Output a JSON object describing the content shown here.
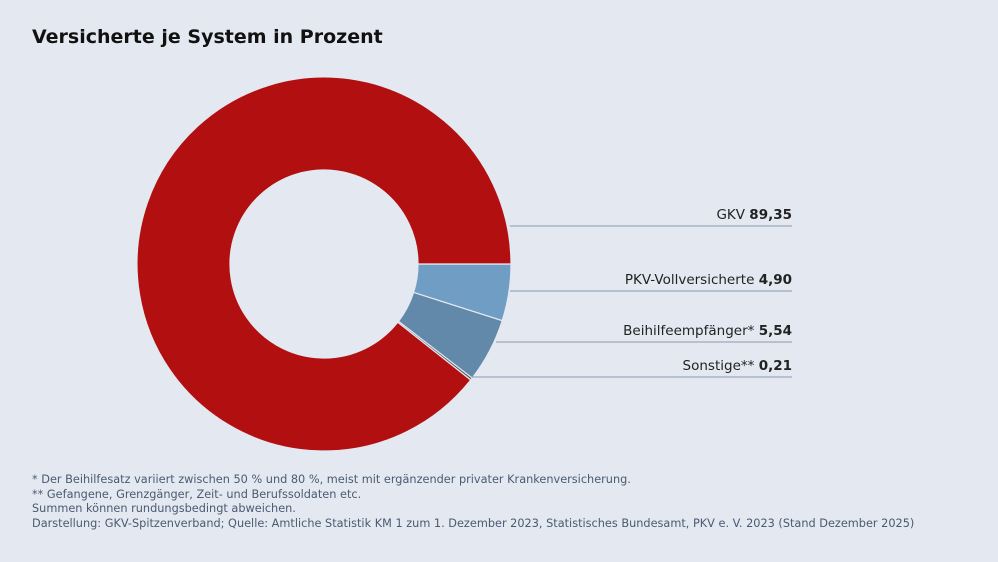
{
  "chart_data": {
    "type": "donut",
    "title": "Versicherte je System in Prozent",
    "unit": "%",
    "start_angle": "3 o'clock, clockwise",
    "slices": [
      {
        "name": "PKV-Vollversicherte",
        "value": 4.9,
        "label": "4,90",
        "color": "#6f9dc4"
      },
      {
        "name": "Beihilfeempfänger*",
        "value": 5.54,
        "label": "5,54",
        "color": "#6289a9"
      },
      {
        "name": "Sonstige**",
        "value": 0.21,
        "label": "0,21",
        "color": "#555a60"
      },
      {
        "name": "GKV",
        "value": 89.35,
        "label": "89,35",
        "color": "#b20f11"
      }
    ]
  },
  "notes": [
    "*   Der Beihilfesatz variiert zwischen 50 % und 80 %, meist mit ergänzender privater Krankenversicherung.",
    "** Gefangene, Grenzgänger, Zeit- und Berufssoldaten etc.",
    "Summen können rundungsbedingt abweichen.",
    "Darstellung: GKV-Spitzenverband; Quelle: Amtliche Statistik KM 1 zum 1. Dezember 2023, Statistisches Bundesamt, PKV e. V. 2023 (Stand Dezember 2025)"
  ]
}
